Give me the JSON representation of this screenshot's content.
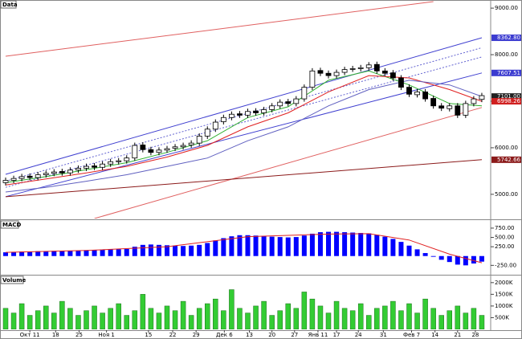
{
  "chart_data": [
    {
      "type": "candlestick",
      "title": "Data",
      "open": [
        5250,
        5300,
        5340,
        5390,
        5360,
        5420,
        5450,
        5490,
        5460,
        5520,
        5560,
        5610,
        5580,
        5650,
        5700,
        5720,
        5780,
        6060,
        5960,
        5900,
        5950,
        5990,
        6020,
        6060,
        6100,
        6250,
        6400,
        6560,
        6650,
        6730,
        6700,
        6790,
        6750,
        6820,
        6900,
        6990,
        6950,
        7050,
        7300,
        7660,
        7600,
        7550,
        7620,
        7690,
        7700,
        7720,
        7790,
        7650,
        7610,
        7500,
        7300,
        7140,
        7200,
        7060,
        6900,
        6840,
        6900,
        6700,
        6950,
        7040
      ],
      "high": [
        5360,
        5400,
        5440,
        5450,
        5480,
        5510,
        5540,
        5550,
        5580,
        5620,
        5660,
        5670,
        5710,
        5760,
        5780,
        5840,
        6110,
        6120,
        6020,
        6010,
        6040,
        6080,
        6110,
        6160,
        6310,
        6460,
        6610,
        6710,
        6780,
        6790,
        6840,
        6850,
        6880,
        6960,
        7040,
        7050,
        7110,
        7360,
        7710,
        7720,
        7660,
        7680,
        7740,
        7760,
        7780,
        7840,
        7850,
        7710,
        7670,
        7560,
        7360,
        7260,
        7260,
        7120,
        6960,
        6960,
        6960,
        7010,
        7110,
        7180
      ],
      "low": [
        5190,
        5240,
        5280,
        5300,
        5300,
        5360,
        5390,
        5400,
        5400,
        5460,
        5500,
        5520,
        5520,
        5590,
        5640,
        5660,
        5720,
        5900,
        5840,
        5840,
        5890,
        5930,
        5960,
        6000,
        6040,
        6190,
        6340,
        6500,
        6590,
        6640,
        6640,
        6690,
        6690,
        6760,
        6840,
        6890,
        6890,
        6990,
        7240,
        7540,
        7490,
        7490,
        7560,
        7630,
        7640,
        7660,
        7590,
        7540,
        7440,
        7240,
        7090,
        7080,
        6990,
        6840,
        6790,
        6780,
        6640,
        6640,
        6890,
        6980
      ],
      "close": [
        5300,
        5340,
        5380,
        5360,
        5420,
        5450,
        5480,
        5460,
        5520,
        5560,
        5600,
        5580,
        5650,
        5700,
        5720,
        5780,
        6050,
        5960,
        5900,
        5950,
        5980,
        6020,
        6050,
        6100,
        6250,
        6400,
        6550,
        6650,
        6720,
        6700,
        6780,
        6750,
        6820,
        6900,
        6980,
        6950,
        7050,
        7300,
        7650,
        7600,
        7550,
        7620,
        7680,
        7700,
        7720,
        7780,
        7650,
        7600,
        7500,
        7300,
        7150,
        7200,
        7050,
        6900,
        6850,
        6900,
        6700,
        6950,
        7050,
        7120
      ],
      "lines": [
        {
          "color": "#e06060",
          "x": [
            0,
            53
          ],
          "values": [
            7966,
            9140
          ]
        },
        {
          "color": "#e06060",
          "x": [
            11,
            59
          ],
          "values": [
            4480,
            6865
          ]
        },
        {
          "color": "#4040d0",
          "x": [
            0,
            59
          ],
          "values": [
            5430,
            8362.8
          ]
        },
        {
          "color": "#6060d0",
          "dash": true,
          "x": [
            0,
            59
          ],
          "values": [
            5280,
            8150
          ]
        },
        {
          "color": "#6060d0",
          "dash": true,
          "x": [
            0,
            59
          ],
          "values": [
            5150,
            7950
          ]
        },
        {
          "color": "#4040d0",
          "x": [
            0,
            59
          ],
          "values": [
            4950,
            7607.51
          ]
        },
        {
          "color": "#8b1a1a",
          "x": [
            0,
            59
          ],
          "values": [
            4947,
            5742.66
          ]
        },
        {
          "color": "#30b030",
          "x": [
            0,
            5,
            10,
            15,
            20,
            25,
            30,
            35,
            40,
            45,
            50,
            55,
            59
          ],
          "values": [
            5250,
            5380,
            5530,
            5680,
            5900,
            6150,
            6650,
            6880,
            7450,
            7650,
            7350,
            6950,
            6900
          ]
        },
        {
          "color": "#e02020",
          "x": [
            0,
            5,
            10,
            15,
            20,
            25,
            30,
            35,
            40,
            45,
            50,
            55,
            59
          ],
          "values": [
            5200,
            5330,
            5460,
            5600,
            5800,
            6050,
            6450,
            6750,
            7200,
            7550,
            7500,
            7250,
            6998.26
          ]
        },
        {
          "color": "#6060c0",
          "x": [
            0,
            5,
            10,
            15,
            20,
            25,
            30,
            35,
            40,
            45,
            50,
            55,
            59
          ],
          "values": [
            5050,
            5150,
            5280,
            5420,
            5600,
            5780,
            6150,
            6450,
            6900,
            7250,
            7450,
            7350,
            7101
          ]
        }
      ],
      "ylim": [
        4480,
        9140
      ],
      "yticks": [
        {
          "value": 5000,
          "label": "5000.00"
        },
        {
          "value": 6000,
          "label": "6000.00"
        },
        {
          "value": 7000,
          "label": "7000.00"
        },
        {
          "value": 8000,
          "label": "8000.00"
        },
        {
          "value": 9000,
          "label": "9000.00"
        }
      ],
      "price_labels": [
        {
          "value": 8362.8,
          "label": "8362.80",
          "color": "#3b3bd0"
        },
        {
          "value": 7607.51,
          "label": "7607.51",
          "color": "#3b3bd0"
        },
        {
          "value": 7101,
          "label": "7101.00",
          "color": "#202020"
        },
        {
          "value": 6998.26,
          "label": "6998.26",
          "color": "#d02020"
        },
        {
          "value": 5742.66,
          "label": "5742.66",
          "color": "#8b1a1a"
        }
      ]
    },
    {
      "type": "bar",
      "title": "MACD",
      "color": "#0000ff",
      "values": [
        100,
        110,
        120,
        120,
        130,
        135,
        140,
        140,
        145,
        150,
        160,
        165,
        170,
        180,
        185,
        190,
        250,
        300,
        310,
        300,
        290,
        280,
        270,
        280,
        300,
        350,
        420,
        480,
        530,
        560,
        560,
        550,
        540,
        520,
        510,
        500,
        510,
        550,
        600,
        640,
        650,
        650,
        640,
        630,
        620,
        610,
        570,
        520,
        460,
        380,
        280,
        180,
        80,
        -20,
        -100,
        -160,
        -230,
        -250,
        -200,
        -150
      ],
      "lines": [
        {
          "color": "#e02020",
          "x": [
            0,
            10,
            20,
            30,
            40,
            45,
            50,
            55,
            59
          ],
          "values": [
            100,
            150,
            250,
            520,
            590,
            600,
            430,
            50,
            -180
          ]
        }
      ],
      "ylim": [
        -480,
        900
      ],
      "yticks": [
        {
          "value": 750,
          "label": "750.00"
        },
        {
          "value": 500,
          "label": "500.00"
        },
        {
          "value": 250,
          "label": "250.00"
        },
        {
          "value": -250,
          "label": "-250.00"
        }
      ]
    },
    {
      "type": "bar",
      "title": "Volume",
      "color": "#33cc33",
      "values": [
        900,
        700,
        1100,
        600,
        800,
        1000,
        700,
        1200,
        900,
        600,
        800,
        1000,
        700,
        900,
        1100,
        600,
        800,
        1500,
        900,
        700,
        1000,
        800,
        1200,
        600,
        900,
        1100,
        1300,
        800,
        1700,
        900,
        700,
        1000,
        1200,
        600,
        800,
        1100,
        900,
        1600,
        1300,
        1000,
        700,
        1200,
        900,
        800,
        1100,
        600,
        900,
        1000,
        1200,
        800,
        1100,
        700,
        1300,
        900,
        600,
        800,
        1000,
        700,
        900,
        600
      ],
      "ylim": [
        0,
        2200
      ],
      "yticks": [
        {
          "value": 500,
          "label": "500K"
        },
        {
          "value": 1000,
          "label": "1000K"
        },
        {
          "value": 1500,
          "label": "1500K"
        },
        {
          "value": 2000,
          "label": "2000K"
        }
      ],
      "xticks": [
        {
          "value": 3,
          "label": "Окт 11"
        },
        {
          "value": 6.2,
          "label": "18"
        },
        {
          "value": 9.1,
          "label": "25"
        },
        {
          "value": 12.5,
          "label": "Ноя 1"
        },
        {
          "value": 17.7,
          "label": "15"
        },
        {
          "value": 20.7,
          "label": "22"
        },
        {
          "value": 23.6,
          "label": "29"
        },
        {
          "value": 27.1,
          "label": "Дек 6"
        },
        {
          "value": 30.2,
          "label": "13"
        },
        {
          "value": 33,
          "label": "20"
        },
        {
          "value": 35.8,
          "label": "27"
        },
        {
          "value": 38.7,
          "label": "Янв 11"
        },
        {
          "value": 41,
          "label": "17"
        },
        {
          "value": 43.7,
          "label": "24"
        },
        {
          "value": 46.8,
          "label": "31"
        },
        {
          "value": 50.3,
          "label": "Фев 7"
        },
        {
          "value": 53.2,
          "label": "14"
        },
        {
          "value": 56,
          "label": "21"
        },
        {
          "value": 58.2,
          "label": "28"
        }
      ]
    }
  ]
}
